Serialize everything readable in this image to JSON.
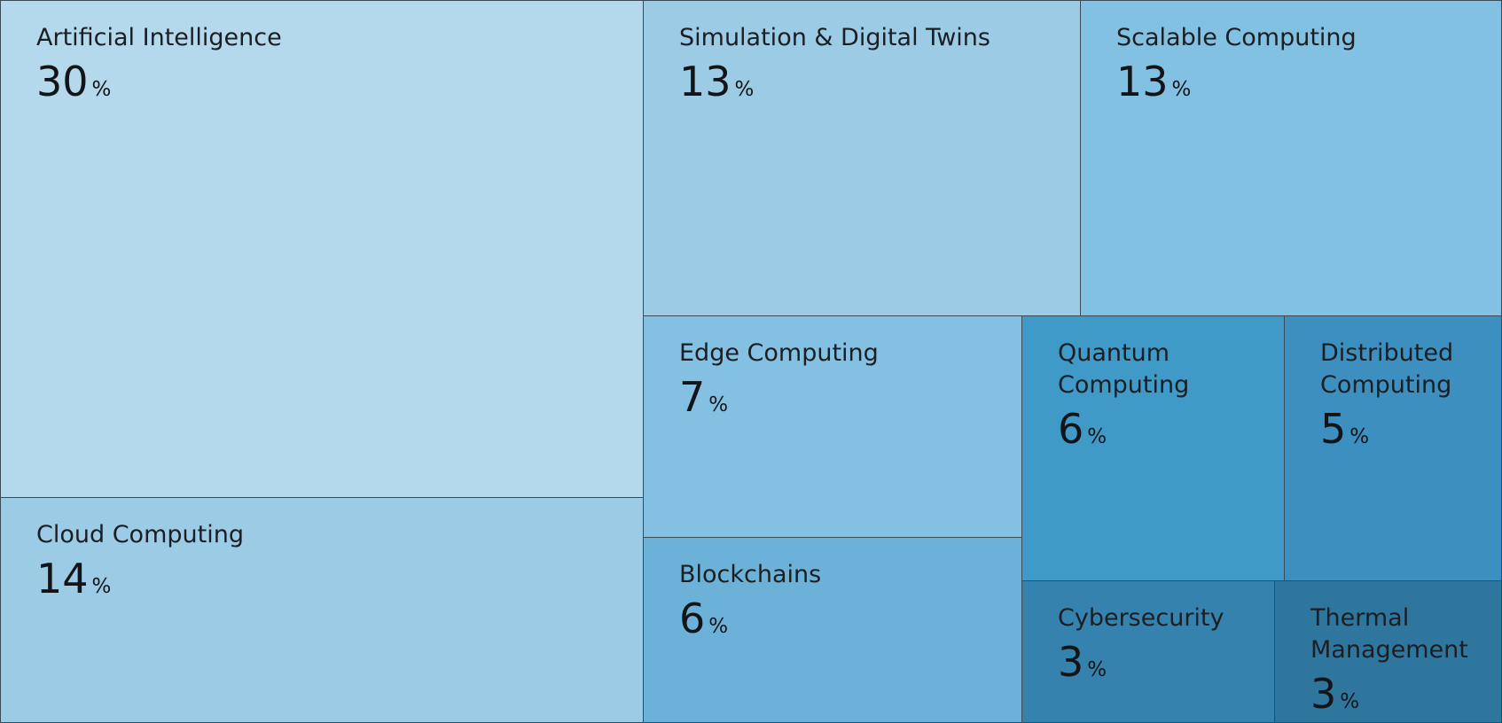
{
  "chart_data": {
    "type": "treemap",
    "unit": "%",
    "items": [
      {
        "label": "Artificial Intelligence",
        "value": 30,
        "color": "#b4d8ec"
      },
      {
        "label": "Simulation & Digital Twins",
        "value": 13,
        "color": "#9ccbe6"
      },
      {
        "label": "Scalable Computing",
        "value": 13,
        "color": "#83c1e2"
      },
      {
        "label": "Cloud Computing",
        "value": 14,
        "color": "#9ccbe6"
      },
      {
        "label": "Edge Computing",
        "value": 7,
        "color": "#84c0e1"
      },
      {
        "label": "Quantum\nComputing",
        "value": 6,
        "color": "#3f9ac8"
      },
      {
        "label": "Distributed\nComputing",
        "value": 5,
        "color": "#3c8fbe"
      },
      {
        "label": "Blockchains",
        "value": 6,
        "color": "#6cb1d8"
      },
      {
        "label": "Cybersecurity",
        "value": 3,
        "color": "#3582ae"
      },
      {
        "label": "Thermal\nManagement",
        "value": 3,
        "color": "#2f769f"
      }
    ]
  }
}
